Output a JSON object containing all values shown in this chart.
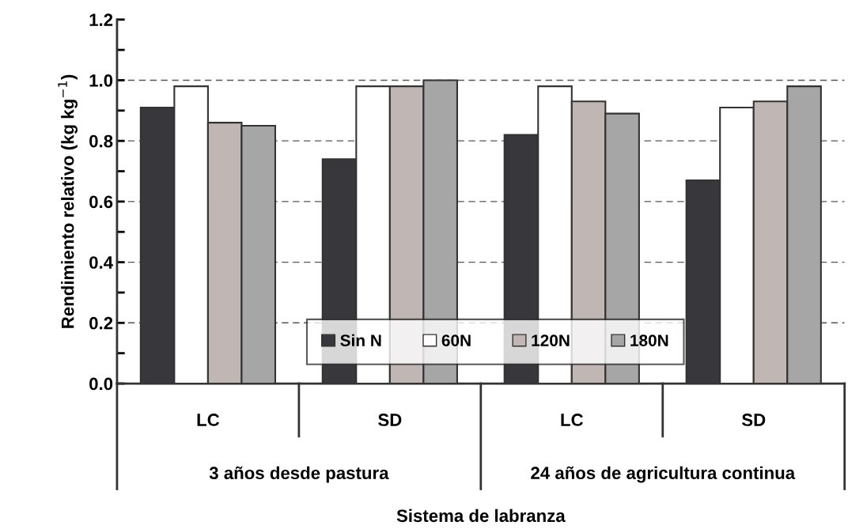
{
  "chart_data": {
    "type": "bar",
    "categories": [
      "LC",
      "SD",
      "LC",
      "SD"
    ],
    "series": [
      {
        "name": "Sin N",
        "color": "#38373c",
        "values": [
          0.91,
          0.74,
          0.82,
          0.67
        ]
      },
      {
        "name": "60N",
        "color": "#ffffff",
        "values": [
          0.98,
          0.98,
          0.98,
          0.91
        ]
      },
      {
        "name": "120N",
        "color": "#c0b7b4",
        "values": [
          0.86,
          0.98,
          0.93,
          0.93
        ]
      },
      {
        "name": "180N",
        "color": "#a6a6a6",
        "values": [
          0.85,
          1.0,
          0.89,
          0.98
        ]
      }
    ],
    "ylabel": "Rendimiento relativo (kg kg$^{−1}$)",
    "xlabel": "Sistema de labranza",
    "annotations": [
      "3 años desde pastura",
      "24 años de agricultura continua"
    ],
    "ylim": [
      0,
      1.2
    ],
    "yticks": [
      {
        "value": 0,
        "label": "0.0"
      },
      {
        "value": 0.1,
        "label": null
      },
      0.2,
      {
        "value": 0.3,
        "label": null
      },
      0.4,
      {
        "value": 0.5,
        "label": null
      },
      0.6,
      {
        "value": 0.7,
        "label": null
      },
      0.8,
      {
        "value": 0.9,
        "label": null
      },
      {
        "value": 1.0,
        "label": "1.0"
      },
      {
        "value": 1.1,
        "label": null
      },
      1.2
    ],
    "grid": "y",
    "legend": "bottom"
  }
}
